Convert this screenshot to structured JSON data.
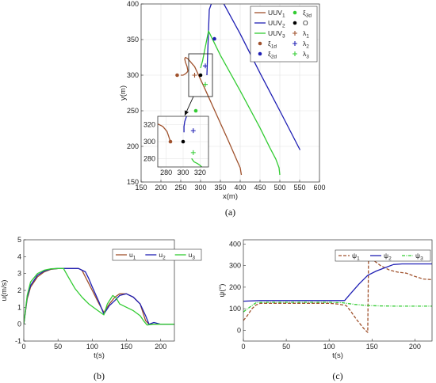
{
  "chart_data": [
    {
      "id": "a",
      "type": "line",
      "caption": "(a)",
      "xlabel": "x(m)",
      "ylabel": "y(m)",
      "xlim": [
        150,
        600
      ],
      "ylim": [
        150,
        400
      ],
      "xticks": [
        150,
        200,
        250,
        300,
        350,
        400,
        450,
        500,
        550,
        600
      ],
      "yticks": [
        150,
        200,
        250,
        300,
        350,
        400
      ],
      "grid": true,
      "legend_position": "top-right",
      "legend": [
        {
          "label": "UUV",
          "sub": "1",
          "kind": "line",
          "color": "#a0522d"
        },
        {
          "label": "ξ",
          "sub": "3d",
          "kind": "dot",
          "color": "#33cc33"
        },
        {
          "label": "UUV",
          "sub": "2",
          "kind": "line",
          "color": "#1f1fb4"
        },
        {
          "label": "O",
          "sub": "",
          "kind": "dot",
          "color": "#000000"
        },
        {
          "label": "UUV",
          "sub": "3",
          "kind": "line",
          "color": "#33cc33"
        },
        {
          "label": "λ",
          "sub": "1",
          "kind": "plus",
          "color": "#a0522d"
        },
        {
          "label": "ξ",
          "sub": "1d",
          "kind": "dot",
          "color": "#a0522d"
        },
        {
          "label": "λ",
          "sub": "2",
          "kind": "plus",
          "color": "#1f1fb4"
        },
        {
          "label": "ξ",
          "sub": "2d",
          "kind": "dot",
          "color": "#1f1fb4"
        },
        {
          "label": "λ",
          "sub": "3",
          "kind": "plus",
          "color": "#33cc33"
        }
      ],
      "series": [
        {
          "name": "UUV1",
          "color": "#a0522d",
          "x": [
            403,
            400,
            392,
            370,
            340,
            310,
            285,
            268,
            262,
            260,
            262,
            266,
            268,
            266,
            262,
            256,
            250
          ],
          "y": [
            160,
            170,
            180,
            208,
            245,
            282,
            312,
            323,
            325,
            323,
            318,
            312,
            306,
            304,
            302,
            300,
            300
          ]
        },
        {
          "name": "UUV2",
          "color": "#1f1fb4",
          "x": [
            551,
            500,
            450,
            400,
            350,
            336,
            330,
            328,
            327,
            322,
            316
          ],
          "y": [
            195,
            250,
            303,
            358,
            409,
            420,
            418,
            410,
            400,
            392,
            300
          ]
        },
        {
          "name": "UUV3",
          "color": "#33cc33",
          "x": [
            500,
            498,
            490,
            475,
            450,
            400,
            350,
            320,
            305,
            300
          ],
          "y": [
            160,
            170,
            182,
            198,
            226,
            278,
            328,
            362,
            320,
            310
          ]
        },
        {
          "name": "ξ1d",
          "kind": "dot",
          "color": "#a0522d",
          "x": [
            241
          ],
          "y": [
            300
          ]
        },
        {
          "name": "ξ2d",
          "kind": "dot",
          "color": "#1f1fb4",
          "x": [
            335
          ],
          "y": [
            351
          ]
        },
        {
          "name": "ξ3d",
          "kind": "dot",
          "color": "#33cc33",
          "x": [
            288
          ],
          "y": [
            250
          ]
        },
        {
          "name": "O",
          "kind": "dot",
          "color": "#000000",
          "x": [
            300
          ],
          "y": [
            300
          ]
        },
        {
          "name": "λ1",
          "kind": "plus",
          "color": "#a0522d",
          "x": [
            285
          ],
          "y": [
            300
          ]
        },
        {
          "name": "λ2",
          "kind": "plus",
          "color": "#1f1fb4",
          "x": [
            312
          ],
          "y": [
            313
          ]
        },
        {
          "name": "λ3",
          "kind": "plus",
          "color": "#33cc33",
          "x": [
            312
          ],
          "y": [
            287
          ]
        }
      ],
      "inset": {
        "xlim": [
          270,
          330
        ],
        "ylim": [
          270,
          330
        ],
        "xticks": [
          280,
          300,
          320
        ],
        "yticks": [
          280,
          300,
          320
        ],
        "zoom_box": {
          "x": [
            270,
            330
          ],
          "y": [
            270,
            330
          ]
        },
        "series": [
          {
            "name": "UUV1",
            "color": "#a0522d",
            "x": [
              270,
              276,
              281,
              283,
              284,
              285
            ],
            "y": [
              321,
              318,
              312,
              306,
              303,
              301
            ]
          },
          {
            "name": "UUV2",
            "color": "#1f1fb4",
            "x": [
              304,
              302,
              301,
              301
            ],
            "y": [
              330,
              324,
              318,
              311
            ]
          },
          {
            "name": "UUV3",
            "color": "#33cc33",
            "x": [
              310,
              313,
              317,
              320,
              322
            ],
            "y": [
              280,
              276,
              274,
              272,
              270
            ]
          },
          {
            "name": "O",
            "kind": "dot",
            "color": "#000000",
            "x": [
              300
            ],
            "y": [
              300
            ]
          },
          {
            "name": "ξ1d",
            "kind": "dot",
            "color": "#a0522d",
            "x": [
              285
            ],
            "y": [
              300
            ]
          },
          {
            "name": "λ2",
            "kind": "plus",
            "color": "#1f1fb4",
            "x": [
              312
            ],
            "y": [
              313
            ]
          },
          {
            "name": "λ3",
            "kind": "plus",
            "color": "#33cc33",
            "x": [
              312
            ],
            "y": [
              287
            ]
          }
        ]
      }
    },
    {
      "id": "b",
      "type": "line",
      "caption": "(b)",
      "xlabel": "t(s)",
      "ylabel": "u(m/s)",
      "xlim": [
        0,
        220
      ],
      "ylim": [
        -1,
        5
      ],
      "xticks": [
        0,
        50,
        100,
        150,
        200
      ],
      "yticks": [
        -1,
        0,
        1,
        2,
        3,
        4,
        5
      ],
      "grid": false,
      "legend_position": "top-right",
      "legend": [
        {
          "label": "u",
          "sub": "1",
          "color": "#a0522d"
        },
        {
          "label": "u",
          "sub": "2",
          "color": "#1f1fb4"
        },
        {
          "label": "u",
          "sub": "3",
          "color": "#33cc33"
        }
      ],
      "series": [
        {
          "name": "u1",
          "color": "#a0522d",
          "x": [
            0,
            5,
            10,
            20,
            30,
            40,
            50,
            60,
            70,
            80,
            85,
            90,
            100,
            110,
            117,
            125,
            133,
            140,
            150,
            160,
            170,
            178,
            183,
            190,
            200,
            210,
            220
          ],
          "y": [
            0,
            1.5,
            2.2,
            2.8,
            3.1,
            3.25,
            3.3,
            3.3,
            3.3,
            3.3,
            3.2,
            2.8,
            2.0,
            1.2,
            0.7,
            1.2,
            1.6,
            1.8,
            1.8,
            1.6,
            1.2,
            0.2,
            0.0,
            0.0,
            0.0,
            0.0,
            0.0
          ]
        },
        {
          "name": "u2",
          "color": "#1f1fb4",
          "x": [
            0,
            5,
            10,
            20,
            30,
            40,
            50,
            60,
            70,
            80,
            90,
            95,
            100,
            110,
            117,
            125,
            133,
            140,
            150,
            160,
            170,
            178,
            183,
            190,
            200,
            210,
            220
          ],
          "y": [
            0,
            1.6,
            2.3,
            2.9,
            3.15,
            3.27,
            3.3,
            3.3,
            3.3,
            3.3,
            3.1,
            2.7,
            2.2,
            1.3,
            0.6,
            1.1,
            1.4,
            1.7,
            1.8,
            1.6,
            1.2,
            0.5,
            0.0,
            0.1,
            0.0,
            0.0,
            0.0
          ]
        },
        {
          "name": "u3",
          "color": "#33cc33",
          "x": [
            0,
            5,
            10,
            20,
            30,
            40,
            50,
            58,
            65,
            75,
            85,
            95,
            105,
            117,
            122,
            130,
            135,
            140,
            150,
            160,
            170,
            176,
            180,
            190,
            200,
            210,
            220
          ],
          "y": [
            0,
            1.7,
            2.5,
            3.0,
            3.2,
            3.28,
            3.3,
            3.3,
            2.8,
            2.1,
            1.6,
            1.2,
            0.9,
            0.55,
            1.2,
            1.7,
            1.55,
            1.2,
            1.0,
            0.8,
            0.5,
            0.15,
            -0.05,
            0.0,
            0.0,
            0.0,
            0.0
          ]
        }
      ]
    },
    {
      "id": "c",
      "type": "line",
      "caption": "(c)",
      "xlabel": "t(s)",
      "ylabel": "ψ(°)",
      "xlim": [
        0,
        220
      ],
      "ylim": [
        -50,
        420
      ],
      "xticks": [
        0,
        50,
        100,
        150,
        200
      ],
      "yticks": [
        0,
        100,
        200,
        300,
        400
      ],
      "grid": false,
      "legend_position": "top-right",
      "legend": [
        {
          "label": "ψ",
          "sub": "1",
          "color": "#a0522d",
          "dash": "4,2"
        },
        {
          "label": "ψ",
          "sub": "2",
          "color": "#1f1fb4",
          "dash": ""
        },
        {
          "label": "ψ",
          "sub": "3",
          "color": "#33cc33",
          "dash": "4,1.5,1,1.5"
        }
      ],
      "series": [
        {
          "name": "ψ1",
          "color": "#a0522d",
          "dash": "4,2",
          "x": [
            0,
            5,
            10,
            15,
            20,
            40,
            60,
            80,
            100,
            110,
            120,
            125,
            132,
            140,
            145,
            146,
            150,
            160,
            170,
            180,
            190,
            200,
            210,
            220
          ],
          "y": [
            45,
            70,
            100,
            118,
            125,
            125,
            125,
            125,
            125,
            122,
            115,
            90,
            50,
            10,
            -10,
            340,
            330,
            300,
            280,
            270,
            265,
            250,
            238,
            235
          ]
        },
        {
          "name": "ψ2",
          "color": "#1f1fb4",
          "dash": "",
          "x": [
            0,
            20,
            40,
            60,
            80,
            100,
            118,
            125,
            135,
            145,
            155,
            165,
            175,
            185,
            200,
            220
          ],
          "y": [
            135,
            138,
            138,
            138,
            138,
            138,
            138,
            170,
            215,
            255,
            275,
            290,
            305,
            308,
            308,
            308
          ]
        },
        {
          "name": "ψ3",
          "color": "#33cc33",
          "dash": "4,1.5,1,1.5",
          "x": [
            0,
            5,
            10,
            15,
            25,
            40,
            60,
            80,
            100,
            115,
            130,
            145,
            160,
            180,
            200,
            220
          ],
          "y": [
            85,
            100,
            115,
            128,
            130,
            130,
            130,
            130,
            130,
            128,
            120,
            115,
            113,
            112,
            112,
            112
          ]
        }
      ]
    }
  ]
}
